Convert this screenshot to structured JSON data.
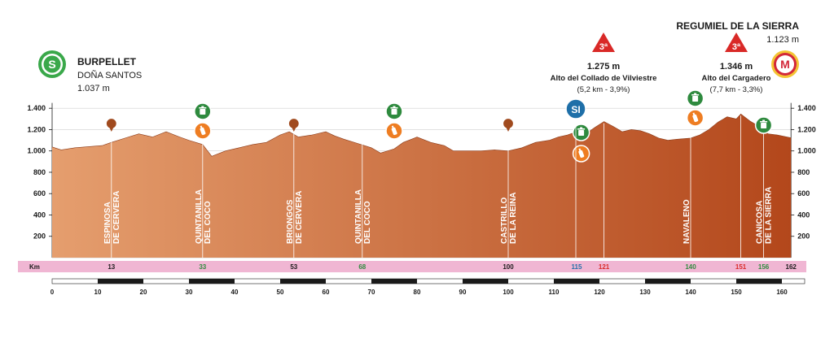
{
  "start": {
    "badge": "S",
    "name": "BURPELLET",
    "subtitle": "DOÑA SANTOS",
    "altitude": "1.037 m"
  },
  "finish": {
    "badge": "M",
    "name": "REGUMIEL DE LA SIERRA",
    "altitude": "1.123 m"
  },
  "climbs": [
    {
      "category": "3ª",
      "km": 121,
      "height": "1.275 m",
      "name": "Alto del Collado de Vilviestre",
      "detail": "(5,2 km - 3,9%)"
    },
    {
      "category": "3ª",
      "km": 151,
      "height": "1.346 m",
      "name": "Alto del Cargadero",
      "detail": "(7,7 km - 3,3%)"
    }
  ],
  "sprint": {
    "label": "SI",
    "km": 115
  },
  "km_label": "Km",
  "feed_icon": "waste-bin-icon",
  "sweets_icon": "refreshment-bottle-icon",
  "colors": {
    "profile_top": "#e59e6e",
    "profile_bottom": "#b3471b",
    "km_bar": "#f0b6d3",
    "green": "#2e8a3e",
    "orange": "#ee7d22",
    "sprint": "#1e6fa8",
    "climb": "#d92927",
    "town_pin": "#a04a1e"
  },
  "chart_data": {
    "type": "area",
    "title": "",
    "xlabel": "",
    "ylabel": "",
    "xlim": [
      0,
      165
    ],
    "ylim": [
      0,
      1500
    ],
    "x_ticks": [
      0,
      10,
      20,
      30,
      40,
      50,
      60,
      70,
      80,
      90,
      100,
      110,
      120,
      130,
      140,
      150,
      160
    ],
    "y_ticks": [
      "200",
      "400",
      "600",
      "800",
      "1.000",
      "1.200",
      "1.400"
    ],
    "y_tick_values": [
      200,
      400,
      600,
      800,
      1000,
      1200,
      1400
    ],
    "profile": {
      "x": [
        0,
        2,
        5,
        8,
        11,
        13,
        16,
        19,
        22,
        25,
        28,
        30,
        33,
        35,
        38,
        41,
        44,
        47,
        50,
        52,
        54,
        57,
        60,
        62,
        64,
        67,
        70,
        72,
        75,
        77,
        80,
        83,
        86,
        88,
        91,
        94,
        97,
        100,
        103,
        106,
        109,
        111,
        113,
        115,
        117,
        119,
        121,
        123,
        125,
        127,
        129,
        131,
        133,
        135,
        137,
        140,
        142,
        144,
        146,
        148,
        150,
        151,
        153,
        155,
        157,
        159,
        162
      ],
      "y": [
        1037,
        1010,
        1030,
        1040,
        1050,
        1080,
        1120,
        1160,
        1130,
        1180,
        1130,
        1100,
        1060,
        950,
        1000,
        1030,
        1060,
        1080,
        1150,
        1180,
        1130,
        1150,
        1180,
        1140,
        1110,
        1070,
        1030,
        980,
        1020,
        1080,
        1130,
        1080,
        1050,
        1000,
        1000,
        1000,
        1010,
        1000,
        1030,
        1080,
        1100,
        1130,
        1150,
        1180,
        1160,
        1220,
        1275,
        1230,
        1180,
        1200,
        1190,
        1160,
        1120,
        1100,
        1110,
        1120,
        1150,
        1200,
        1270,
        1320,
        1300,
        1346,
        1280,
        1230,
        1160,
        1150,
        1123
      ]
    },
    "towns": [
      {
        "name": "ESPINOSA DE CERVERA",
        "line1": "ESPINOSA",
        "line2": "DE CERVERA",
        "km": 13
      },
      {
        "name": "QUINTANILLA DEL COCO",
        "line1": "QUINTANILLA",
        "line2": "DEL COCO",
        "km": 33
      },
      {
        "name": "BRIONGOS DE CERVERA",
        "line1": "BRIONGOS",
        "line2": "DE CERVERA",
        "km": 53
      },
      {
        "name": "QUINTANILLA DEL COCO",
        "line1": "QUINTANILLA",
        "line2": "DEL COCO",
        "km": 68
      },
      {
        "name": "CASTRILLO DE LA REINA",
        "line1": "CASTRILLO",
        "line2": "DE LA REINA",
        "km": 100
      },
      {
        "name": "NAVALENO",
        "line1": "NAVALENO",
        "line2": "",
        "km": 140
      },
      {
        "name": "CANICOSA DE LA SIERRA",
        "line1": "CANICOSA",
        "line2": "DE LA SIERRA",
        "km": 156
      }
    ],
    "km_markers": [
      {
        "label": "13",
        "km": 13,
        "color": "#1a1a1a"
      },
      {
        "label": "33",
        "km": 33,
        "color": "#2e8a3e"
      },
      {
        "label": "53",
        "km": 53,
        "color": "#1a1a1a"
      },
      {
        "label": "68",
        "km": 68,
        "color": "#2e8a3e"
      },
      {
        "label": "100",
        "km": 100,
        "color": "#1a1a1a"
      },
      {
        "label": "115",
        "km": 115,
        "color": "#1e6fa8"
      },
      {
        "label": "121",
        "km": 121,
        "color": "#d92927"
      },
      {
        "label": "140",
        "km": 140,
        "color": "#2e8a3e"
      },
      {
        "label": "151",
        "km": 151,
        "color": "#d92927"
      },
      {
        "label": "156",
        "km": 156,
        "color": "#2e8a3e"
      },
      {
        "label": "162",
        "km": 162,
        "color": "#1a1a1a"
      }
    ],
    "feed_zones_km": [
      33,
      75,
      116,
      141,
      156
    ],
    "refreshment_km": [
      33,
      75,
      116,
      141
    ],
    "legend": "none",
    "grid": true
  }
}
